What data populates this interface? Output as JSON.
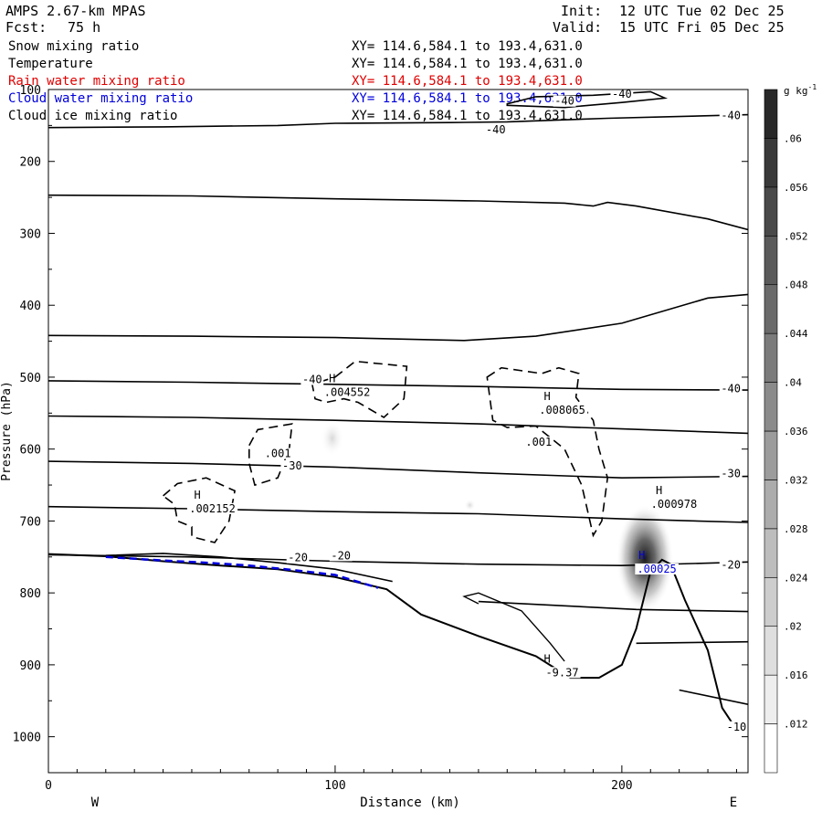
{
  "header": {
    "title": "AMPS 2.67-km MPAS",
    "fcst_label": "Fcst:",
    "fcst_value": "75 h",
    "init_label": "Init:",
    "init_value": "12 UTC Tue 02 Dec 25",
    "valid_label": "Valid:",
    "valid_value": "15 UTC Fri 05 Dec 25",
    "fields": [
      {
        "name": "Snow mixing ratio",
        "xy": "XY= 114.6,584.1 to 193.4,631.0",
        "color": "#000000"
      },
      {
        "name": "Temperature",
        "xy": "XY= 114.6,584.1 to 193.4,631.0",
        "color": "#000000"
      },
      {
        "name": "Rain water mixing ratio",
        "xy": "XY= 114.6,584.1 to 193.4,631.0",
        "color": "#e00000"
      },
      {
        "name": "Cloud water mixing ratio",
        "xy": "XY= 114.6,584.1 to 193.4,631.0",
        "color": "#0000dd"
      },
      {
        "name": "Cloud ice mixing ratio",
        "xy": "XY= 114.6,584.1 to 193.4,631.0",
        "color": "#000000"
      }
    ]
  },
  "chart_data": {
    "type": "contour cross-section",
    "xlabel": "Distance (km)",
    "ylabel": "Pressure (hPa)",
    "xlim": [
      0,
      244
    ],
    "ylim": [
      1050,
      100
    ],
    "x_ticks": [
      0,
      100,
      200
    ],
    "y_ticks": [
      100,
      200,
      300,
      400,
      500,
      600,
      700,
      800,
      900,
      1000
    ],
    "x_end_labels": {
      "left": "W",
      "right": "E"
    },
    "colorbar": {
      "unit": "g kg",
      "unit_exp": "-1",
      "levels": [
        ".012",
        ".016",
        ".02",
        ".024",
        ".028",
        ".032",
        ".036",
        ".04",
        ".044",
        ".048",
        ".052",
        ".056",
        ".06"
      ]
    },
    "temperature_lines": [
      {
        "points": [
          [
            0,
            153
          ],
          [
            40,
            152
          ],
          [
            80,
            150
          ],
          [
            100,
            147
          ],
          [
            140,
            146
          ],
          [
            160,
            145
          ],
          [
            195,
            140
          ],
          [
            244,
            135
          ]
        ]
      },
      {
        "points": [
          [
            0,
            247
          ],
          [
            50,
            248
          ],
          [
            100,
            252
          ],
          [
            150,
            255
          ],
          [
            180,
            258
          ],
          [
            190,
            262
          ],
          [
            195,
            257
          ],
          [
            205,
            262
          ],
          [
            230,
            280
          ],
          [
            244,
            295
          ]
        ]
      },
      {
        "points": [
          [
            0,
            442
          ],
          [
            50,
            443
          ],
          [
            100,
            445
          ],
          [
            145,
            449
          ],
          [
            170,
            443
          ],
          [
            200,
            425
          ],
          [
            230,
            390
          ],
          [
            244,
            385
          ]
        ]
      },
      {
        "points": [
          [
            0,
            505
          ],
          [
            50,
            507
          ],
          [
            100,
            510
          ],
          [
            150,
            513
          ],
          [
            200,
            517
          ],
          [
            244,
            518
          ]
        ]
      },
      {
        "points": [
          [
            0,
            554
          ],
          [
            50,
            556
          ],
          [
            100,
            560
          ],
          [
            150,
            565
          ],
          [
            200,
            572
          ],
          [
            244,
            578
          ]
        ]
      },
      {
        "points": [
          [
            0,
            617
          ],
          [
            50,
            620
          ],
          [
            100,
            625
          ],
          [
            150,
            633
          ],
          [
            200,
            640
          ],
          [
            244,
            638
          ]
        ]
      },
      {
        "points": [
          [
            0,
            680
          ],
          [
            50,
            683
          ],
          [
            100,
            687
          ],
          [
            150,
            690
          ],
          [
            200,
            697
          ],
          [
            244,
            702
          ]
        ]
      },
      {
        "points": [
          [
            0,
            747
          ],
          [
            50,
            750
          ],
          [
            100,
            756
          ],
          [
            150,
            760
          ],
          [
            200,
            762
          ],
          [
            244,
            757
          ]
        ]
      },
      {
        "points": [
          [
            20,
            748
          ],
          [
            40,
            745
          ],
          [
            60,
            750
          ],
          [
            80,
            758
          ],
          [
            100,
            767
          ],
          [
            120,
            784
          ]
        ]
      },
      {
        "points": [
          [
            150,
            812
          ],
          [
            180,
            818
          ],
          [
            205,
            823
          ],
          [
            244,
            826
          ]
        ]
      },
      {
        "points": [
          [
            205,
            870
          ],
          [
            244,
            868
          ]
        ]
      },
      {
        "points": [
          [
            220,
            935
          ],
          [
            244,
            955
          ]
        ]
      }
    ],
    "terrain": {
      "points": [
        [
          0,
          746
        ],
        [
          20,
          749
        ],
        [
          40,
          756
        ],
        [
          60,
          762
        ],
        [
          80,
          767
        ],
        [
          100,
          778
        ],
        [
          118,
          795
        ],
        [
          130,
          830
        ],
        [
          150,
          860
        ],
        [
          170,
          888
        ],
        [
          182,
          918
        ],
        [
          192,
          918
        ],
        [
          200,
          900
        ],
        [
          205,
          850
        ],
        [
          210,
          770
        ],
        [
          214,
          754
        ],
        [
          217,
          760
        ],
        [
          222,
          810
        ],
        [
          230,
          880
        ],
        [
          235,
          960
        ],
        [
          240,
          990
        ],
        [
          244,
          980
        ]
      ]
    },
    "terrain_fold": {
      "points": [
        [
          150,
          815
        ],
        [
          145,
          805
        ],
        [
          150,
          800
        ],
        [
          165,
          825
        ],
        [
          175,
          870
        ],
        [
          180,
          895
        ]
      ]
    },
    "top_contour": {
      "points": [
        [
          160,
          120
        ],
        [
          170,
          110
        ],
        [
          190,
          108
        ],
        [
          210,
          103
        ],
        [
          215,
          112
        ],
        [
          200,
          118
        ],
        [
          180,
          125
        ],
        [
          160,
          122
        ]
      ]
    },
    "cloud_ice_contours": [
      {
        "points": [
          [
            100,
            500
          ],
          [
            107,
            478
          ],
          [
            125,
            485
          ],
          [
            124,
            530
          ],
          [
            117,
            556
          ],
          [
            108,
            535
          ],
          [
            103,
            530
          ],
          [
            97,
            535
          ],
          [
            93,
            530
          ],
          [
            92,
            510
          ],
          [
            100,
            500
          ]
        ]
      },
      {
        "points": [
          [
            70,
            595
          ],
          [
            73,
            573
          ],
          [
            85,
            565
          ],
          [
            84,
            600
          ],
          [
            80,
            640
          ],
          [
            72,
            650
          ],
          [
            70,
            620
          ],
          [
            70,
            595
          ]
        ]
      },
      {
        "points": [
          [
            40,
            665
          ],
          [
            45,
            648
          ],
          [
            55,
            640
          ],
          [
            65,
            658
          ],
          [
            63,
            700
          ],
          [
            58,
            730
          ],
          [
            50,
            722
          ],
          [
            50,
            708
          ],
          [
            45,
            700
          ],
          [
            44,
            677
          ],
          [
            40,
            665
          ]
        ]
      },
      {
        "points": [
          [
            153,
            500
          ],
          [
            158,
            487
          ],
          [
            172,
            495
          ],
          [
            178,
            487
          ],
          [
            185,
            495
          ],
          [
            184,
            528
          ],
          [
            190,
            560
          ],
          [
            192,
            600
          ],
          [
            195,
            640
          ],
          [
            193,
            700
          ],
          [
            190,
            720
          ],
          [
            186,
            650
          ],
          [
            180,
            600
          ],
          [
            170,
            568
          ],
          [
            160,
            570
          ],
          [
            155,
            560
          ],
          [
            153,
            500
          ]
        ]
      }
    ],
    "shading": [
      {
        "x": 208,
        "p": 752,
        "rx": 10,
        "rp": 75,
        "peak": ".06"
      },
      {
        "x": 99,
        "p": 585,
        "rx": 4,
        "rp": 25,
        "peak": ".012"
      },
      {
        "x": 147,
        "p": 678,
        "rx": 2,
        "rp": 8,
        "peak": ".012"
      }
    ],
    "cloud_water_dashes": {
      "points": [
        [
          20,
          750
        ],
        [
          40,
          755
        ],
        [
          55,
          758
        ],
        [
          70,
          762
        ],
        [
          85,
          768
        ],
        [
          100,
          775
        ],
        [
          115,
          793
        ]
      ]
    },
    "temp_labels": [
      {
        "x": 156,
        "p": 160,
        "text": "-40"
      },
      {
        "x": 180,
        "p": 120,
        "text": "-40"
      },
      {
        "x": 200,
        "p": 110,
        "text": "-40"
      },
      {
        "x": 238,
        "p": 140,
        "text": "-40"
      },
      {
        "x": 92,
        "p": 507,
        "text": "-40"
      },
      {
        "x": 238,
        "p": 520,
        "text": "-40"
      },
      {
        "x": 85,
        "p": 627,
        "text": "-30"
      },
      {
        "x": 238,
        "p": 638,
        "text": "-30"
      },
      {
        "x": 87,
        "p": 755,
        "text": "-20"
      },
      {
        "x": 102,
        "p": 752,
        "text": "-20"
      },
      {
        "x": 238,
        "p": 765,
        "text": "-20"
      },
      {
        "x": 240,
        "p": 990,
        "text": "-10"
      }
    ],
    "extrema_labels": [
      {
        "x": 101,
        "p": 522,
        "mark": "H",
        "value": ".004552",
        "color": "#000000"
      },
      {
        "x": 176,
        "p": 547,
        "mark": "H",
        "value": ".008065",
        "color": "#000000"
      },
      {
        "x": 54,
        "p": 684,
        "mark": "H",
        "value": ".002152",
        "color": "#000000"
      },
      {
        "x": 215,
        "p": 678,
        "mark": "H",
        "value": ".000978",
        "color": "#000000"
      },
      {
        "x": 209,
        "p": 768,
        "mark": "H",
        "value": ".00025",
        "color": "#0000dd"
      },
      {
        "x": 176,
        "p": 912,
        "mark": "H",
        "value": "-9.37",
        "color": "#000000"
      }
    ],
    "plain_labels": [
      {
        "x": 80,
        "p": 610,
        "text": ".001"
      },
      {
        "x": 171,
        "p": 594,
        "text": ".001"
      }
    ]
  }
}
